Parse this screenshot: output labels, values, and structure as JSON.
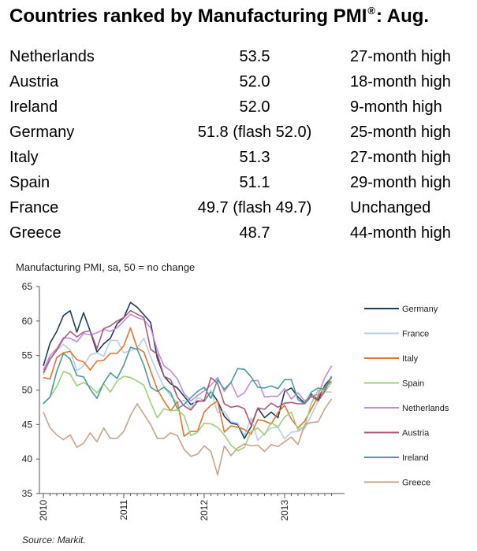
{
  "header": {
    "title_text": "Countries ranked by Manufacturing PMI",
    "title_mark": "®",
    "title_suffix": ": Aug."
  },
  "ranking": [
    {
      "country": "Netherlands",
      "pmi": "53.5",
      "note": "27-month high"
    },
    {
      "country": "Austria",
      "pmi": "52.0",
      "note": "18-month high"
    },
    {
      "country": "Ireland",
      "pmi": "52.0",
      "note": "9-month high"
    },
    {
      "country": "Germany",
      "pmi": "51.8 (flash 52.0)",
      "note": "25-month high"
    },
    {
      "country": "Italy",
      "pmi": "51.3",
      "note": "27-month high"
    },
    {
      "country": "Spain",
      "pmi": "51.1",
      "note": "29-month high"
    },
    {
      "country": "France",
      "pmi": "49.7 (flash 49.7)",
      "note": "Unchanged"
    },
    {
      "country": "Greece",
      "pmi": "48.7",
      "note": "44-month high"
    }
  ],
  "source": "Source: Markit.",
  "chart_data": {
    "type": "line",
    "title": "Manufacturing PMI, sa, 50 = no change",
    "xlabel": "",
    "ylabel": "",
    "ylim": [
      35,
      65
    ],
    "yticks": [
      35,
      40,
      45,
      50,
      55,
      60,
      65
    ],
    "x_tick_labels": [
      "2010",
      "2011",
      "2012",
      "2013"
    ],
    "x_start": "2010-01",
    "x_end": "2013-08",
    "grid": false,
    "legend_position": "right",
    "series": [
      {
        "name": "Germany",
        "color": "#1f3d5c",
        "values": [
          53.5,
          56.8,
          58.5,
          60.8,
          61.5,
          58.4,
          61.2,
          58.5,
          55.5,
          56.7,
          57.5,
          59.6,
          60.5,
          62.7,
          62.0,
          60.9,
          59.8,
          54.6,
          52.0,
          50.9,
          50.3,
          49.1,
          47.9,
          48.4,
          48.4,
          49.8,
          48.4,
          46.2,
          45.2,
          45.0,
          43.0,
          44.7,
          47.4,
          46.0,
          46.8,
          46.0,
          49.8,
          50.3,
          49.0,
          48.1,
          49.4,
          48.6,
          50.7,
          51.8
        ]
      },
      {
        "name": "France",
        "color": "#b8cfe2",
        "values": [
          52.2,
          54.3,
          55.8,
          56.6,
          55.8,
          52.8,
          53.5,
          55.1,
          55.4,
          54.9,
          57.2,
          57.2,
          55.4,
          55.7,
          56.1,
          57.5,
          54.8,
          52.5,
          50.5,
          49.1,
          48.2,
          48.5,
          47.3,
          48.9,
          48.5,
          50.0,
          46.7,
          46.9,
          45.4,
          45.2,
          43.4,
          46.0,
          42.7,
          43.7,
          44.5,
          44.6,
          42.9,
          43.9,
          44.0,
          44.4,
          46.4,
          48.4,
          49.7,
          49.7
        ]
      },
      {
        "name": "Italy",
        "color": "#e8742b",
        "values": [
          51.8,
          51.6,
          54.7,
          55.4,
          55.6,
          54.4,
          54.1,
          52.9,
          54.2,
          54.3,
          55.3,
          55.3,
          56.4,
          59.0,
          56.1,
          55.5,
          52.8,
          50.1,
          48.4,
          47.0,
          48.3,
          43.3,
          44.0,
          44.0,
          46.8,
          47.8,
          48.4,
          43.9,
          44.8,
          44.6,
          44.3,
          43.6,
          45.7,
          45.5,
          45.1,
          46.7,
          47.8,
          45.8,
          44.5,
          45.5,
          47.3,
          49.1,
          50.4,
          51.3
        ]
      },
      {
        "name": "Spain",
        "color": "#9ed07a",
        "values": [
          48.1,
          49.0,
          50.5,
          52.7,
          52.3,
          50.6,
          51.1,
          50.5,
          49.6,
          50.9,
          49.7,
          51.3,
          52.0,
          51.8,
          51.3,
          50.7,
          48.2,
          46.0,
          47.3,
          47.0,
          47.1,
          46.3,
          43.4,
          43.9,
          45.2,
          45.1,
          44.6,
          43.5,
          42.0,
          41.2,
          41.7,
          44.0,
          44.5,
          43.5,
          45.3,
          44.6,
          46.1,
          46.8,
          44.2,
          44.7,
          48.1,
          50.0,
          49.8,
          51.1
        ]
      },
      {
        "name": "Netherlands",
        "color": "#c08ce0",
        "values": [
          52.9,
          55.0,
          56.0,
          57.6,
          57.5,
          57.0,
          58.2,
          58.0,
          58.3,
          58.8,
          58.5,
          59.0,
          60.0,
          61.0,
          60.5,
          60.2,
          59.0,
          55.8,
          53.5,
          52.8,
          51.6,
          49.5,
          48.4,
          49.2,
          49.9,
          50.7,
          51.8,
          49.8,
          51.1,
          49.0,
          49.6,
          51.3,
          51.4,
          49.0,
          49.1,
          49.1,
          50.2,
          48.7,
          49.6,
          48.4,
          49.2,
          49.3,
          51.8,
          53.5
        ]
      },
      {
        "name": "Austria",
        "color": "#b05a75",
        "values": [
          52.5,
          54.5,
          55.8,
          57.4,
          58.5,
          57.7,
          58.4,
          58.6,
          56.0,
          58.9,
          59.3,
          60.0,
          60.5,
          61.5,
          61.0,
          60.5,
          55.9,
          55.2,
          52.0,
          51.5,
          49.0,
          47.7,
          47.1,
          48.3,
          48.5,
          51.8,
          51.0,
          48.0,
          47.5,
          47.7,
          47.3,
          44.9,
          47.4,
          47.2,
          48.1,
          47.5,
          48.1,
          48.2,
          48.0,
          48.0,
          49.1,
          48.4,
          49.9,
          52.0
        ]
      },
      {
        "name": "Ireland",
        "color": "#4a9c9c",
        "values": [
          48.0,
          49.0,
          52.7,
          55.3,
          54.5,
          52.1,
          51.9,
          50.1,
          48.8,
          51.0,
          52.5,
          51.7,
          53.6,
          56.2,
          55.9,
          53.6,
          50.4,
          49.8,
          50.4,
          49.6,
          47.3,
          47.9,
          48.9,
          49.8,
          50.4,
          48.8,
          51.5,
          50.1,
          51.1,
          53.1,
          53.0,
          51.9,
          50.4,
          50.3,
          50.6,
          50.2,
          51.5,
          51.5,
          48.6,
          48.0,
          49.7,
          50.3,
          50.1,
          52.0
        ]
      },
      {
        "name": "Greece",
        "color": "#c9a488",
        "values": [
          46.8,
          44.5,
          43.5,
          42.8,
          43.5,
          41.7,
          42.3,
          43.8,
          42.5,
          44.5,
          43.0,
          43.0,
          44.0,
          46.3,
          48.0,
          46.5,
          45.0,
          43.0,
          43.0,
          43.8,
          43.4,
          41.4,
          40.4,
          40.7,
          41.9,
          41.1,
          37.7,
          41.9,
          40.5,
          41.6,
          42.2,
          41.9,
          42.0,
          41.1,
          42.1,
          41.8,
          42.5,
          43.2,
          42.1,
          45.0,
          45.3,
          45.4,
          47.3,
          48.7
        ]
      }
    ]
  }
}
